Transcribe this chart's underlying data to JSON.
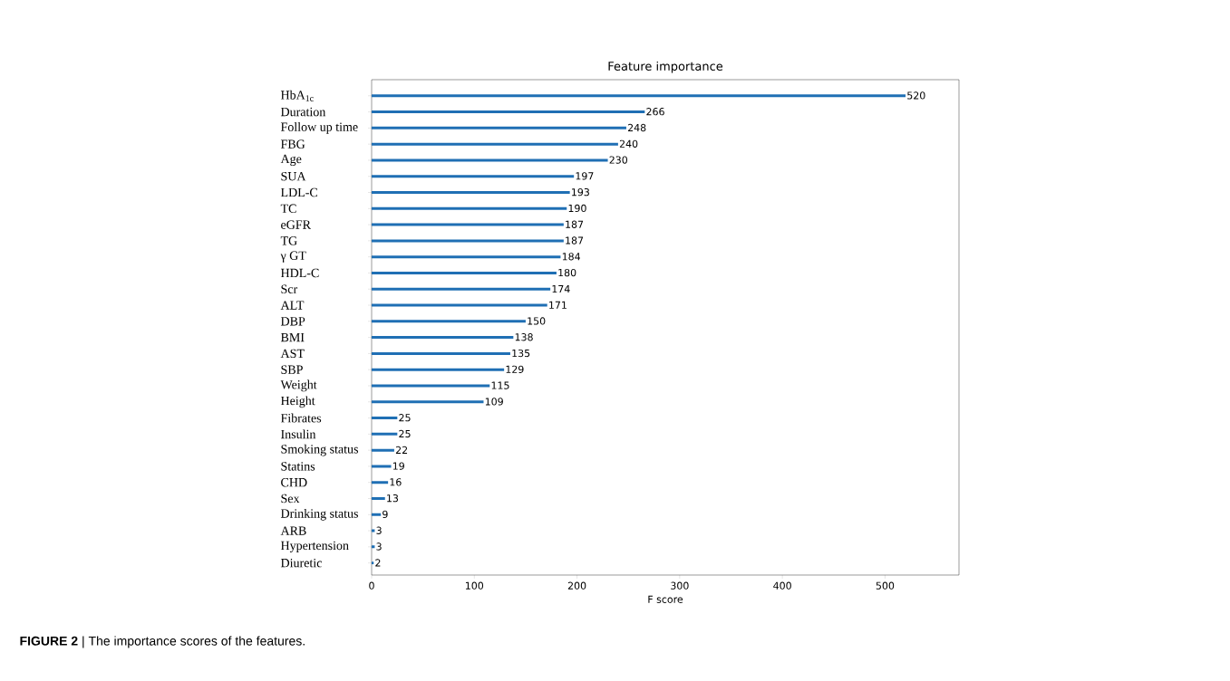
{
  "chart_data": {
    "type": "bar",
    "orientation": "horizontal",
    "title": "Feature importance",
    "xlabel": "F score",
    "categories": [
      "HbA$_{1c}$",
      "Duration",
      "Follow up time",
      "FBG",
      "Age",
      "SUA",
      "LDL-C",
      "TC",
      "eGFR",
      "TG",
      "γ GT",
      "HDL-C",
      "Scr",
      "ALT",
      "DBP",
      "BMI",
      "AST",
      "SBP",
      "Weight",
      "Height",
      "Fibrates",
      "Insulin",
      "Smoking status",
      "Statins",
      "CHD",
      "Sex",
      "Drinking status",
      "ARB",
      "Hypertension",
      "Diuretic"
    ],
    "values": [
      520,
      266,
      248,
      240,
      230,
      197,
      193,
      190,
      187,
      187,
      184,
      180,
      174,
      171,
      150,
      138,
      135,
      129,
      115,
      109,
      25,
      25,
      22,
      19,
      16,
      13,
      9,
      3,
      3,
      2
    ],
    "color": "#1f6fb4",
    "xlim": [
      0,
      572
    ],
    "xticks": [
      0,
      100,
      200,
      300,
      400,
      500
    ],
    "data_labels": true,
    "grid": false,
    "annotations": [
      "**FIGURE 2** | The importance scores of the features."
    ]
  }
}
